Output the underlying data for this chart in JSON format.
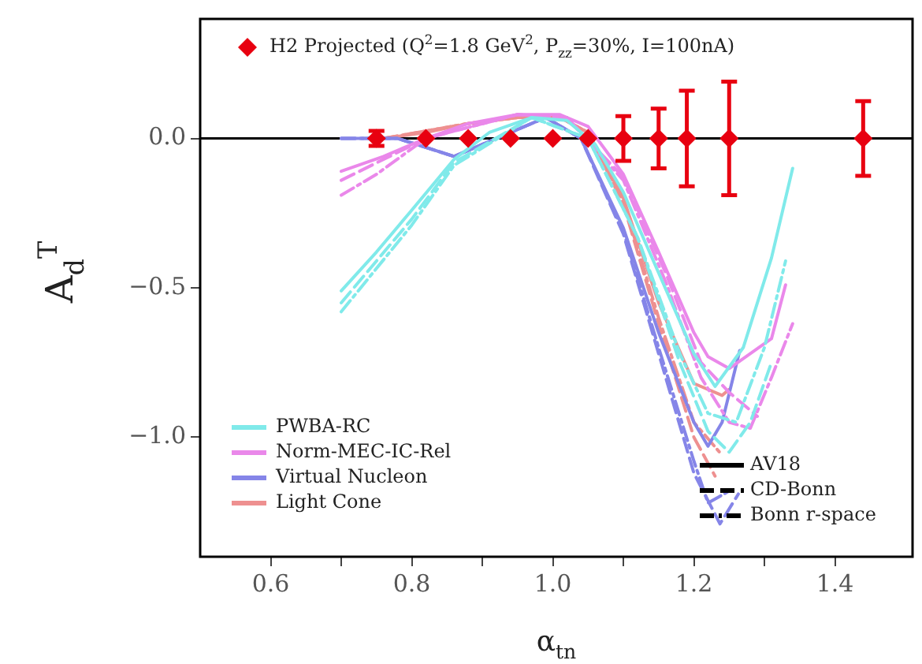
{
  "chart_data": {
    "type": "line",
    "xlabel": "α$_{tn}$",
    "ylabel": "A$_{d}$$^{T}$",
    "xlim": [
      0.5,
      1.51
    ],
    "xticks": [
      0.6,
      {
        "value": 0.7,
        "label": null
      },
      0.8,
      {
        "value": 0.9,
        "label": null
      },
      {
        "value": 1,
        "label": "1.0"
      },
      {
        "value": 1.1,
        "label": null
      },
      1.2,
      {
        "value": 1.3,
        "label": null
      },
      1.4
    ],
    "ylim": [
      -1.4,
      0.4
    ],
    "yticks": [
      {
        "value": 0,
        "label": "0.0"
      },
      {
        "value": -0.5,
        "label": "−0.5"
      },
      {
        "value": -1.0,
        "label": "−1.0"
      }
    ],
    "grid": false,
    "legend": "top left",
    "ref_lines": [
      {
        "axis": "y",
        "value": 0,
        "color": "#000000"
      }
    ],
    "series": [
      {
        "name": "PWBA-RC",
        "color": "#80eaea",
        "line_style": "solid",
        "marker": "none",
        "x": [
          0.7,
          0.75,
          0.8,
          0.86,
          0.91,
          0.97,
          1.02,
          1.06,
          1.1,
          1.15,
          1.2,
          1.23,
          1.27,
          1.31,
          1.34
        ],
        "values": [
          -0.51,
          -0.38,
          -0.24,
          -0.07,
          0.02,
          0.07,
          0.06,
          -0.02,
          -0.18,
          -0.45,
          -0.72,
          -0.83,
          -0.7,
          -0.4,
          -0.1
        ]
      },
      {
        "color": "#80eaea",
        "line_style": "dashed",
        "marker": "none",
        "x": [
          0.7,
          0.8,
          0.86,
          0.97,
          1.05,
          1.12,
          1.18,
          1.22,
          1.25,
          1.28,
          1.31
        ],
        "values": [
          -0.55,
          -0.27,
          -0.08,
          0.07,
          0.0,
          -0.33,
          -0.75,
          -0.98,
          -1.05,
          -0.95,
          -0.75
        ]
      },
      {
        "color": "#80eaea",
        "line_style": "dashdot",
        "marker": "none",
        "x": [
          0.7,
          0.8,
          0.86,
          0.97,
          1.05,
          1.12,
          1.18,
          1.22,
          1.26,
          1.3,
          1.33
        ],
        "values": [
          -0.58,
          -0.29,
          -0.09,
          0.07,
          0.0,
          -0.33,
          -0.72,
          -0.92,
          -0.95,
          -0.7,
          -0.41
        ]
      },
      {
        "name": "Norm-MEC-IC-Rel",
        "color": "#ea88ea",
        "line_style": "solid",
        "marker": "none",
        "x": [
          0.7,
          0.76,
          0.82,
          0.88,
          0.95,
          1.01,
          1.05,
          1.1,
          1.15,
          1.2,
          1.22,
          1.25,
          1.31,
          1.33
        ],
        "values": [
          -0.11,
          -0.06,
          0.0,
          0.05,
          0.08,
          0.08,
          0.04,
          -0.12,
          -0.38,
          -0.65,
          -0.73,
          -0.77,
          -0.67,
          -0.49
        ]
      },
      {
        "color": "#ea88ea",
        "line_style": "dashed",
        "marker": "none",
        "x": [
          0.7,
          0.82,
          0.95,
          1.02,
          1.1,
          1.16,
          1.21,
          1.25,
          1.29
        ],
        "values": [
          -0.14,
          0.0,
          0.08,
          0.07,
          -0.13,
          -0.45,
          -0.75,
          -0.85,
          -0.93
        ]
      },
      {
        "color": "#ea88ea",
        "line_style": "dashdot",
        "marker": "none",
        "x": [
          0.7,
          0.75,
          0.82,
          0.95,
          1.02,
          1.1,
          1.16,
          1.21,
          1.25,
          1.28,
          1.31,
          1.34
        ],
        "values": [
          -0.19,
          -0.12,
          0.0,
          0.08,
          0.07,
          -0.14,
          -0.48,
          -0.8,
          -0.95,
          -0.97,
          -0.8,
          -0.62
        ]
      },
      {
        "name": "Virtual Nucleon",
        "color": "#8585e8",
        "line_style": "solid",
        "marker": "none",
        "x": [
          0.7,
          0.78,
          0.82,
          0.86,
          0.92,
          0.99,
          1.04,
          1.1,
          1.15,
          1.2,
          1.22,
          1.24,
          1.265
        ],
        "values": [
          0.0,
          0.0,
          -0.03,
          -0.06,
          0.0,
          0.07,
          0.0,
          -0.3,
          -0.65,
          -0.95,
          -1.03,
          -0.95,
          -0.71
        ]
      },
      {
        "color": "#8585e8",
        "line_style": "dashed",
        "marker": "none",
        "x": [
          0.7,
          0.78,
          0.86,
          0.92,
          0.99,
          1.04,
          1.1,
          1.15,
          1.2,
          1.237,
          1.263
        ],
        "values": [
          0.0,
          0.0,
          -0.06,
          0.0,
          0.07,
          0.0,
          -0.32,
          -0.72,
          -1.12,
          -1.29,
          -1.19
        ]
      },
      {
        "color": "#8585e8",
        "line_style": "dashdot",
        "marker": "none",
        "x": [
          0.7,
          0.78,
          0.86,
          0.92,
          0.99,
          1.04,
          1.1,
          1.15,
          1.2,
          1.22,
          1.25
        ],
        "values": [
          0.0,
          0.0,
          -0.06,
          0.0,
          0.07,
          0.0,
          -0.31,
          -0.7,
          -1.08,
          -1.22,
          -1.18
        ]
      },
      {
        "name": "Light Cone",
        "color": "#ee9090",
        "line_style": "solid",
        "marker": "none",
        "x": [
          0.76,
          0.82,
          0.88,
          0.95,
          1.01,
          1.05,
          1.1,
          1.15,
          1.2,
          1.24,
          1.25
        ],
        "values": [
          0.0,
          0.02,
          0.05,
          0.07,
          0.07,
          0.02,
          -0.2,
          -0.55,
          -0.82,
          -0.86,
          -0.84
        ]
      },
      {
        "color": "#ee9090",
        "line_style": "dashed",
        "marker": "none",
        "x": [
          0.76,
          0.88,
          0.95,
          1.01,
          1.05,
          1.1,
          1.15,
          1.2,
          1.23
        ],
        "values": [
          0.0,
          0.05,
          0.07,
          0.07,
          0.02,
          -0.22,
          -0.62,
          -1.0,
          -1.13
        ]
      },
      {
        "color": "#ee9090",
        "line_style": "dashdot",
        "marker": "none",
        "x": [
          0.76,
          0.88,
          0.95,
          1.01,
          1.05,
          1.1,
          1.15,
          1.2,
          1.24
        ],
        "values": [
          0.0,
          0.05,
          0.07,
          0.07,
          0.02,
          -0.21,
          -0.6,
          -0.95,
          -1.06
        ]
      },
      {
        "name": "AV18",
        "color": "#000000",
        "line_style": "solid",
        "marker": "none"
      },
      {
        "name": "CD-Bonn",
        "color": "#000000",
        "line_style": "dashed",
        "marker": "none"
      },
      {
        "name": "Bonn r-space",
        "color": "#000000",
        "line_style": "dashdot",
        "marker": "none"
      },
      {
        "name": "H2 Projected (Q$^{2}$=1.8 GeV$^{2}$, P$_{zz}$=30%, I=100nA)",
        "type": "scatter",
        "color": "#e80010",
        "marker": "diamond",
        "x": [
          0.75,
          0.82,
          0.88,
          0.94,
          1.0,
          1.05,
          1.1,
          1.15,
          1.19,
          1.25,
          1.44
        ],
        "values": [
          0,
          0,
          0,
          0,
          0,
          0,
          0,
          0,
          0,
          0,
          0
        ],
        "errors": [
          0.025,
          null,
          null,
          null,
          null,
          null,
          0.075,
          0.1,
          0.16,
          0.19,
          0.125
        ]
      }
    ]
  }
}
